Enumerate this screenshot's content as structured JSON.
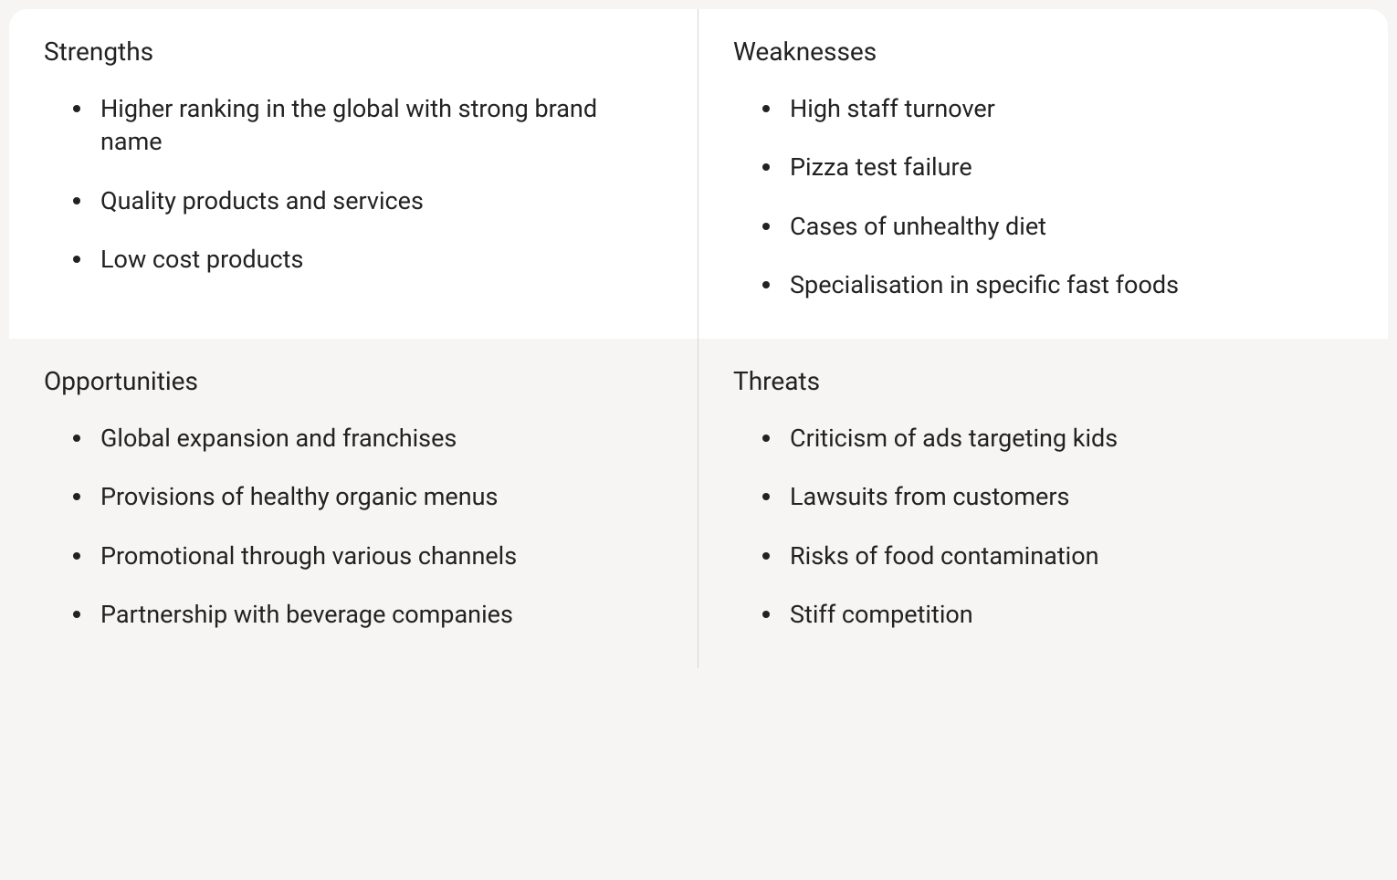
{
  "swot": {
    "type": "table",
    "layout": "2x2-grid",
    "colors": {
      "top_bg": "#ffffff",
      "bottom_bg": "#f6f5f3",
      "border": "#d8d6d2",
      "text": "#222222",
      "bullet": "#222222"
    },
    "typography": {
      "title_fontsize": 28,
      "title_weight": 400,
      "item_fontsize": 27,
      "font_family": "-apple-system"
    },
    "border_radius": 20,
    "quadrants": {
      "strengths": {
        "title": "Strengths",
        "position": "top-left",
        "items": [
          "Higher ranking in the global with strong brand name",
          "Quality products and services",
          "Low cost products"
        ]
      },
      "weaknesses": {
        "title": "Weaknesses",
        "position": "top-right",
        "items": [
          "High staff turnover",
          "Pizza test failure",
          "Cases of unhealthy diet",
          "Specialisation in specific fast foods"
        ]
      },
      "opportunities": {
        "title": "Opportunities",
        "position": "bottom-left",
        "items": [
          "Global expansion and franchises",
          "Provisions of healthy organic menus",
          "Promotional through various channels",
          "Partnership with beverage companies"
        ]
      },
      "threats": {
        "title": "Threats",
        "position": "bottom-right",
        "items": [
          "Criticism of ads targeting kids",
          "Lawsuits from customers",
          "Risks of food contamination",
          "Stiff competition"
        ]
      }
    }
  }
}
